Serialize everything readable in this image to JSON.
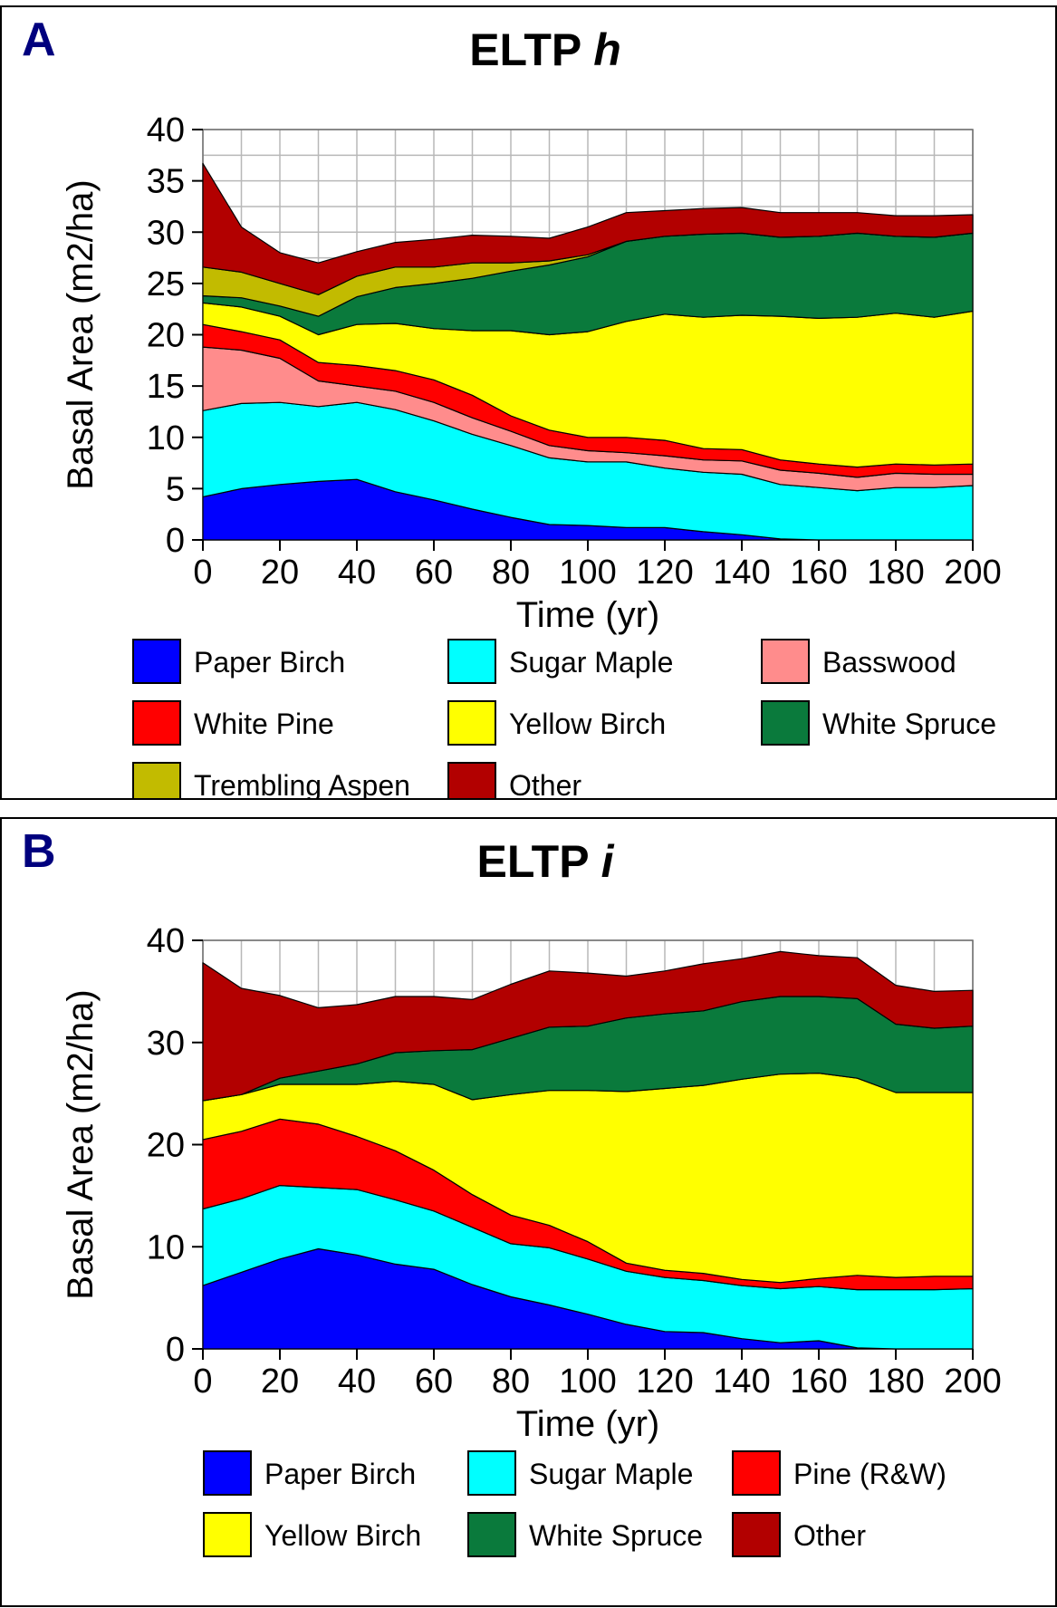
{
  "panels": [
    {
      "label": "A",
      "title": "ELTP",
      "title_suffix": "h",
      "legend": [
        {
          "name": "Paper Birch",
          "color": "#0000ff"
        },
        {
          "name": "Sugar Maple",
          "color": "#00ffff"
        },
        {
          "name": "Basswood",
          "color": "#ff8c8c"
        },
        {
          "name": "White Pine",
          "color": "#ff0000"
        },
        {
          "name": "Yellow Birch",
          "color": "#ffff00"
        },
        {
          "name": "White Spruce",
          "color": "#0a7a3c"
        },
        {
          "name": "Trembling Aspen",
          "color": "#c2bb00"
        },
        {
          "name": "Other",
          "color": "#b20000"
        }
      ]
    },
    {
      "label": "B",
      "title": "ELTP",
      "title_suffix": "i",
      "legend": [
        {
          "name": "Paper Birch",
          "color": "#0000ff"
        },
        {
          "name": "Sugar Maple",
          "color": "#00ffff"
        },
        {
          "name": "Pine (R&W)",
          "color": "#ff0000"
        },
        {
          "name": "Yellow Birch",
          "color": "#ffff00"
        },
        {
          "name": "White Spruce",
          "color": "#0a7a3c"
        },
        {
          "name": "Other",
          "color": "#b20000"
        }
      ]
    }
  ],
  "chart_data": [
    {
      "type": "area",
      "stacked": true,
      "title": "ELTP h",
      "xlabel": "Time (yr)",
      "ylabel": "Basal Area (m2/ha)",
      "xlim": [
        0,
        200
      ],
      "ylim": [
        0,
        40
      ],
      "xticks": [
        0,
        20,
        40,
        60,
        80,
        100,
        120,
        140,
        160,
        180,
        200
      ],
      "yticks": [
        0,
        5,
        10,
        15,
        20,
        25,
        30,
        35,
        40
      ],
      "grid": true,
      "legend_position": "bottom",
      "x": [
        0,
        10,
        20,
        30,
        40,
        50,
        60,
        70,
        80,
        90,
        100,
        110,
        120,
        130,
        140,
        150,
        160,
        170,
        180,
        190,
        200
      ],
      "series": [
        {
          "name": "Paper Birch",
          "color": "#0000ff",
          "values": [
            4.2,
            5.0,
            5.4,
            5.7,
            5.9,
            4.7,
            3.9,
            3.0,
            2.2,
            1.5,
            1.4,
            1.2,
            1.2,
            0.8,
            0.5,
            0.1,
            0,
            0,
            0,
            0,
            0
          ]
        },
        {
          "name": "Sugar Maple",
          "color": "#00ffff",
          "values": [
            8.4,
            8.3,
            8.0,
            7.3,
            7.5,
            8.0,
            7.7,
            7.3,
            7.0,
            6.5,
            6.2,
            6.4,
            5.8,
            5.8,
            5.9,
            5.3,
            5.1,
            4.8,
            5.1,
            5.1,
            5.3
          ]
        },
        {
          "name": "Basswood",
          "color": "#ff8c8c",
          "values": [
            6.2,
            5.2,
            4.3,
            2.5,
            1.6,
            1.8,
            1.8,
            1.6,
            1.4,
            1.2,
            1.1,
            0.9,
            1.2,
            1.2,
            1.3,
            1.4,
            1.4,
            1.3,
            1.4,
            1.3,
            1.1
          ]
        },
        {
          "name": "White Pine",
          "color": "#ff0000",
          "values": [
            2.2,
            1.8,
            1.8,
            1.8,
            2.0,
            2.0,
            2.2,
            2.2,
            1.5,
            1.5,
            1.3,
            1.5,
            1.5,
            1.1,
            1.1,
            1.0,
            0.9,
            1.0,
            0.9,
            0.9,
            1.0
          ]
        },
        {
          "name": "Yellow Birch",
          "color": "#ffff00",
          "values": [
            2.1,
            2.4,
            2.3,
            2.7,
            4.0,
            4.6,
            5.0,
            6.3,
            8.3,
            9.3,
            10.3,
            11.3,
            12.3,
            12.8,
            13.1,
            14.0,
            14.2,
            14.6,
            14.7,
            14.4,
            14.9
          ]
        },
        {
          "name": "White Spruce",
          "color": "#0a7a3c",
          "values": [
            0.7,
            0.9,
            1.0,
            1.8,
            2.7,
            3.5,
            4.4,
            5.1,
            5.8,
            6.8,
            7.3,
            7.8,
            7.6,
            8.1,
            8.0,
            7.7,
            8.0,
            8.2,
            7.5,
            7.8,
            7.6
          ]
        },
        {
          "name": "Trembling Aspen",
          "color": "#c2bb00",
          "values": [
            2.8,
            2.5,
            2.2,
            2.1,
            2.0,
            2.0,
            1.6,
            1.5,
            0.8,
            0.4,
            0.2,
            0,
            0,
            0,
            0,
            0,
            0,
            0,
            0,
            0,
            0
          ]
        },
        {
          "name": "Other",
          "color": "#b20000",
          "values": [
            10.1,
            4.4,
            3.0,
            3.1,
            2.4,
            2.4,
            2.7,
            2.7,
            2.6,
            2.2,
            2.7,
            2.8,
            2.5,
            2.5,
            2.5,
            2.4,
            2.3,
            2.0,
            2.0,
            2.1,
            1.8
          ]
        }
      ]
    },
    {
      "type": "area",
      "stacked": true,
      "title": "ELTP i",
      "xlabel": "Time (yr)",
      "ylabel": "Basal Area (m2/ha)",
      "xlim": [
        0,
        200
      ],
      "ylim": [
        0,
        40
      ],
      "xticks": [
        0,
        20,
        40,
        60,
        80,
        100,
        120,
        140,
        160,
        180,
        200
      ],
      "yticks": [
        0,
        10,
        20,
        30,
        40
      ],
      "grid": true,
      "legend_position": "bottom",
      "x": [
        0,
        10,
        20,
        30,
        40,
        50,
        60,
        70,
        80,
        90,
        100,
        110,
        120,
        130,
        140,
        150,
        160,
        170,
        180,
        190,
        200
      ],
      "series": [
        {
          "name": "Paper Birch",
          "color": "#0000ff",
          "values": [
            6.2,
            7.5,
            8.8,
            9.8,
            9.2,
            8.3,
            7.8,
            6.3,
            5.1,
            4.3,
            3.4,
            2.4,
            1.7,
            1.6,
            1.0,
            0.6,
            0.8,
            0.1,
            0,
            0,
            0
          ]
        },
        {
          "name": "Sugar Maple",
          "color": "#00ffff",
          "values": [
            7.5,
            7.2,
            7.2,
            6.0,
            6.4,
            6.3,
            5.7,
            5.6,
            5.2,
            5.6,
            5.4,
            5.2,
            5.3,
            5.1,
            5.2,
            5.3,
            5.3,
            5.7,
            5.8,
            5.8,
            5.9
          ]
        },
        {
          "name": "Pine (R&W)",
          "color": "#ff0000",
          "values": [
            6.8,
            6.6,
            6.5,
            6.2,
            5.2,
            4.8,
            4.0,
            3.2,
            2.8,
            2.2,
            1.7,
            0.8,
            0.7,
            0.7,
            0.6,
            0.6,
            0.8,
            1.4,
            1.2,
            1.3,
            1.2
          ]
        },
        {
          "name": "Yellow Birch",
          "color": "#ffff00",
          "values": [
            3.8,
            3.6,
            3.4,
            3.9,
            5.1,
            6.8,
            8.4,
            9.3,
            11.8,
            13.2,
            14.8,
            16.8,
            17.8,
            18.4,
            19.6,
            20.4,
            20.1,
            19.3,
            18.1,
            18.0,
            18.0
          ]
        },
        {
          "name": "White Spruce",
          "color": "#0a7a3c",
          "values": [
            0,
            0,
            0.6,
            1.3,
            2.0,
            2.8,
            3.3,
            4.9,
            5.5,
            6.2,
            6.3,
            7.2,
            7.3,
            7.3,
            7.6,
            7.6,
            7.5,
            7.8,
            6.7,
            6.3,
            6.5
          ]
        },
        {
          "name": "Other",
          "color": "#b20000",
          "values": [
            13.5,
            10.4,
            8.1,
            6.2,
            5.8,
            5.5,
            5.3,
            4.9,
            5.3,
            5.5,
            5.2,
            4.1,
            4.2,
            4.6,
            4.2,
            4.4,
            4.0,
            4.0,
            3.8,
            3.6,
            3.5
          ]
        }
      ]
    }
  ]
}
